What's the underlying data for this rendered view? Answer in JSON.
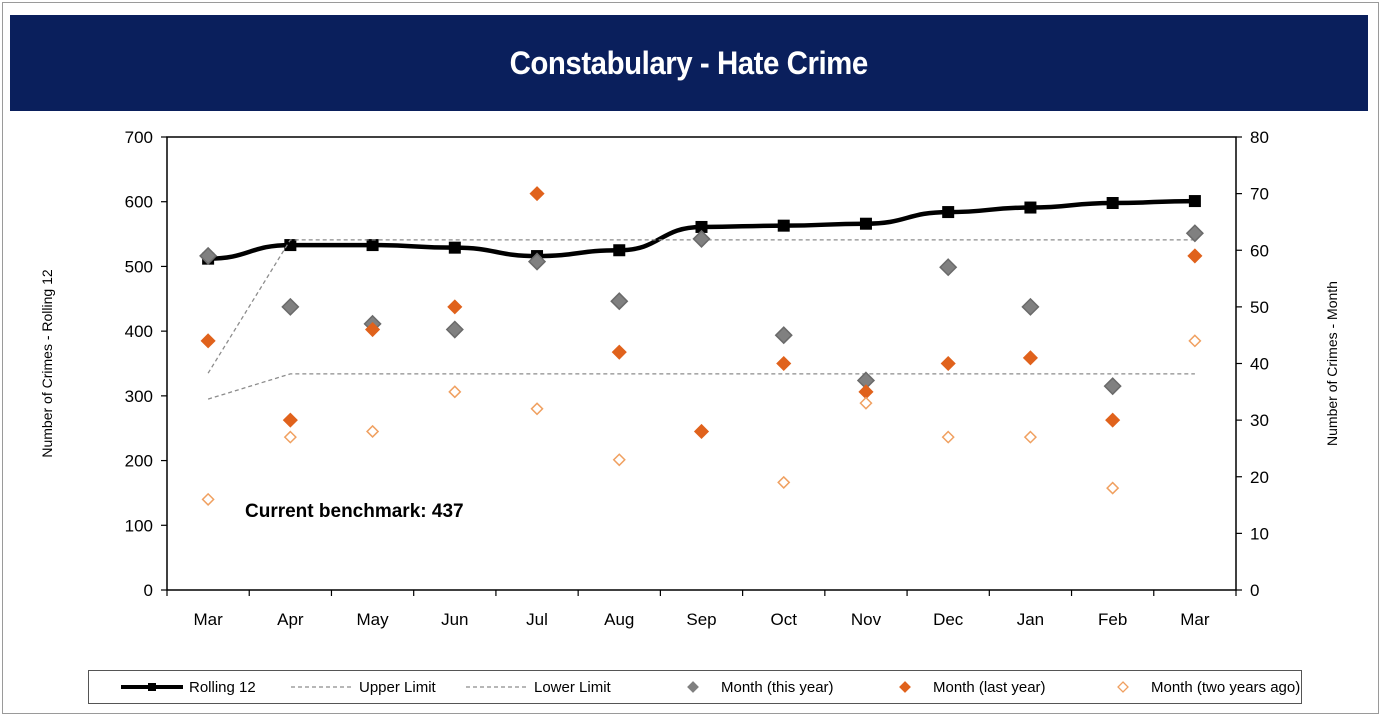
{
  "chart_data": {
    "type": "line",
    "title": "Constabulary - Hate Crime",
    "categories": [
      "Mar",
      "Apr",
      "May",
      "Jun",
      "Jul",
      "Aug",
      "Sep",
      "Oct",
      "Nov",
      "Dec",
      "Jan",
      "Feb",
      "Mar"
    ],
    "ylabel_left": "Number of Crimes - Rolling 12",
    "ylabel_right": "Number of Crimes - Month",
    "ylim_left": [
      0,
      700
    ],
    "ylim_right": [
      0,
      80
    ],
    "yticks_left": [
      "0",
      "100",
      "200",
      "300",
      "400",
      "500",
      "600",
      "700"
    ],
    "yticks_right": [
      "0",
      "10",
      "20",
      "30",
      "40",
      "50",
      "60",
      "70",
      "80"
    ],
    "annotation": "Current benchmark: 437",
    "series": [
      {
        "name": "Rolling 12",
        "axis": "left",
        "style": "line-square",
        "values": [
          512,
          533,
          533,
          529,
          516,
          525,
          561,
          563,
          566,
          584,
          591,
          598,
          601
        ]
      },
      {
        "name": "Upper Limit",
        "axis": "left",
        "style": "dashed",
        "values": [
          335,
          541,
          541,
          541,
          541,
          541,
          541,
          541,
          541,
          541,
          541,
          541,
          541
        ]
      },
      {
        "name": "Lower Limit",
        "axis": "left",
        "style": "dashed",
        "values": [
          295,
          334,
          334,
          334,
          334,
          334,
          334,
          334,
          334,
          334,
          334,
          334,
          334
        ]
      },
      {
        "name": "Month (this year)",
        "axis": "right",
        "style": "diamond-gray",
        "values": [
          59,
          50,
          47,
          46,
          58,
          51,
          62,
          45,
          37,
          57,
          50,
          36,
          63
        ]
      },
      {
        "name": "Month (last year)",
        "axis": "right",
        "style": "diamond-orange",
        "values": [
          44,
          30,
          46,
          50,
          70,
          42,
          28,
          40,
          35,
          40,
          41,
          30,
          59
        ]
      },
      {
        "name": "Month (two years ago)",
        "axis": "right",
        "style": "diamond-open",
        "values": [
          16,
          27,
          28,
          35,
          32,
          23,
          null,
          19,
          33,
          27,
          27,
          18,
          44
        ]
      }
    ],
    "legend_position": "bottom",
    "grid": false,
    "colors": {
      "rolling": "#000000",
      "limits": "#8c8c8c",
      "this_year": "#808080",
      "last_year": "#e0621c",
      "two_years": "#f0a060",
      "title_bg": "#0a1f5c"
    }
  }
}
